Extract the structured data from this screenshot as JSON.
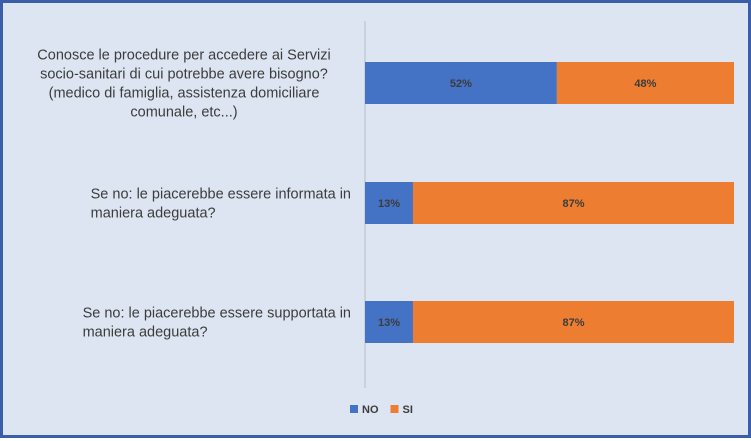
{
  "chart_data": {
    "type": "bar",
    "orientation": "horizontal",
    "stacked": "percent",
    "title": "",
    "xlabel": "",
    "ylabel": "",
    "xlim": [
      0,
      100
    ],
    "grid": false,
    "legend_position": "bottom",
    "categories": [
      {
        "label": "Conosce le procedure per accedere ai Servizi socio-sanitari di cui potrebbe avere bisogno? (medico di famiglia, assistenza domiciliare comunale, etc...)",
        "lines": [
          "Conosce le procedure per accedere ai Servizi",
          "socio-sanitari di cui potrebbe avere bisogno?",
          "(medico di famiglia, assistenza domiciliare",
          "comunale, etc...)"
        ],
        "align": "center"
      },
      {
        "label": "Se no: le piacerebbe essere informata in maniera adeguata?",
        "lines": [
          "Se no: le piacerebbe essere informata in",
          "maniera adeguata?"
        ],
        "align": "left"
      },
      {
        "label": "Se no: le piacerebbe essere supportata in maniera adeguata?",
        "lines": [
          "Se no: le piacerebbe essere supportata in",
          "maniera adeguata?"
        ],
        "align": "left"
      }
    ],
    "series": [
      {
        "name": "NO",
        "color": "#4472c4",
        "values": [
          52,
          13,
          13
        ],
        "labels": [
          "52%",
          "13%",
          "13%"
        ]
      },
      {
        "name": "SI",
        "color": "#ed7d31",
        "values": [
          48,
          87,
          87
        ],
        "labels": [
          "48%",
          "87%",
          "87%"
        ]
      }
    ]
  }
}
